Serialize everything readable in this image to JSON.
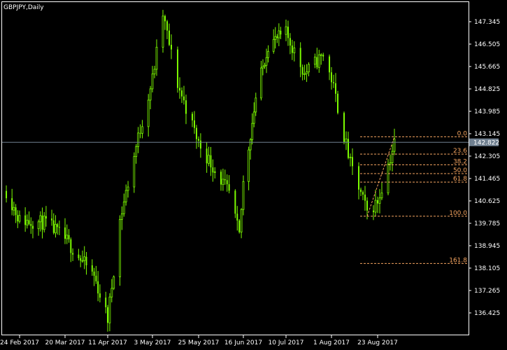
{
  "symbol_label": "GBPJPY,Daily",
  "colors": {
    "background": "#000000",
    "frame": "#ffffff",
    "candle": "#7cfc00",
    "fib": "#f4a460",
    "price_line": "#708090",
    "current_price_box": "#708090"
  },
  "current_price": "142.822",
  "price_axis_labels": [
    "147.345",
    "146.505",
    "145.665",
    "144.825",
    "143.985",
    "143.145",
    "142.305",
    "141.465",
    "140.625",
    "139.785",
    "138.945",
    "138.105",
    "137.265",
    "136.425"
  ],
  "date_axis_labels": [
    "24 Feb 2017",
    "20 Mar 2017",
    "11 Apr 2017",
    "3 May 2017",
    "25 May 2017",
    "16 Jun 2017",
    "10 Jul 2017",
    "1 Aug 2017",
    "23 Aug 2017"
  ],
  "fib_levels": [
    {
      "label": "0.0",
      "price": 143.03
    },
    {
      "label": "23.6",
      "price": 142.38
    },
    {
      "label": "38.2",
      "price": 141.98
    },
    {
      "label": "50.0",
      "price": 141.65
    },
    {
      "label": "61.8",
      "price": 141.33
    },
    {
      "label": "100.0",
      "price": 140.05
    },
    {
      "label": "161.8",
      "price": 138.28
    }
  ],
  "chart_data": {
    "type": "candlestick",
    "title": "GBPJPY,Daily",
    "ylim": [
      136.0,
      148.2
    ],
    "x": [
      "24 Feb 2017",
      "20 Mar 2017",
      "11 Apr 2017",
      "3 May 2017",
      "25 May 2017",
      "16 Jun 2017",
      "10 Jul 2017",
      "1 Aug 2017",
      "23 Aug 2017"
    ],
    "close_path": [
      {
        "date": "17 Feb 2017",
        "price": 141.0
      },
      {
        "date": "24 Feb 2017",
        "price": 139.9
      },
      {
        "date": "10 Mar 2017",
        "price": 139.8
      },
      {
        "date": "20 Mar 2017",
        "price": 139.2
      },
      {
        "date": "4 Apr 2017",
        "price": 137.8
      },
      {
        "date": "11 Apr 2017",
        "price": 136.2
      },
      {
        "date": "17 Apr 2017",
        "price": 139.9
      },
      {
        "date": "26 Apr 2017",
        "price": 143.0
      },
      {
        "date": "3 May 2017",
        "price": 145.2
      },
      {
        "date": "8 May 2017",
        "price": 147.6
      },
      {
        "date": "15 May 2017",
        "price": 145.0
      },
      {
        "date": "25 May 2017",
        "price": 142.8
      },
      {
        "date": "9 Jun 2017",
        "price": 140.9
      },
      {
        "date": "14 Jun 2017",
        "price": 139.3
      },
      {
        "date": "16 Jun 2017",
        "price": 141.3
      },
      {
        "date": "23 Jun 2017",
        "price": 144.5
      },
      {
        "date": "30 Jun 2017",
        "price": 146.5
      },
      {
        "date": "10 Jul 2017",
        "price": 146.9
      },
      {
        "date": "19 Jul 2017",
        "price": 145.4
      },
      {
        "date": "28 Jul 2017",
        "price": 146.1
      },
      {
        "date": "1 Aug 2017",
        "price": 145.2
      },
      {
        "date": "10 Aug 2017",
        "price": 142.0
      },
      {
        "date": "18 Aug 2017",
        "price": 140.2
      },
      {
        "date": "23 Aug 2017",
        "price": 140.6
      },
      {
        "date": "31 Aug 2017",
        "price": 142.8
      }
    ]
  }
}
